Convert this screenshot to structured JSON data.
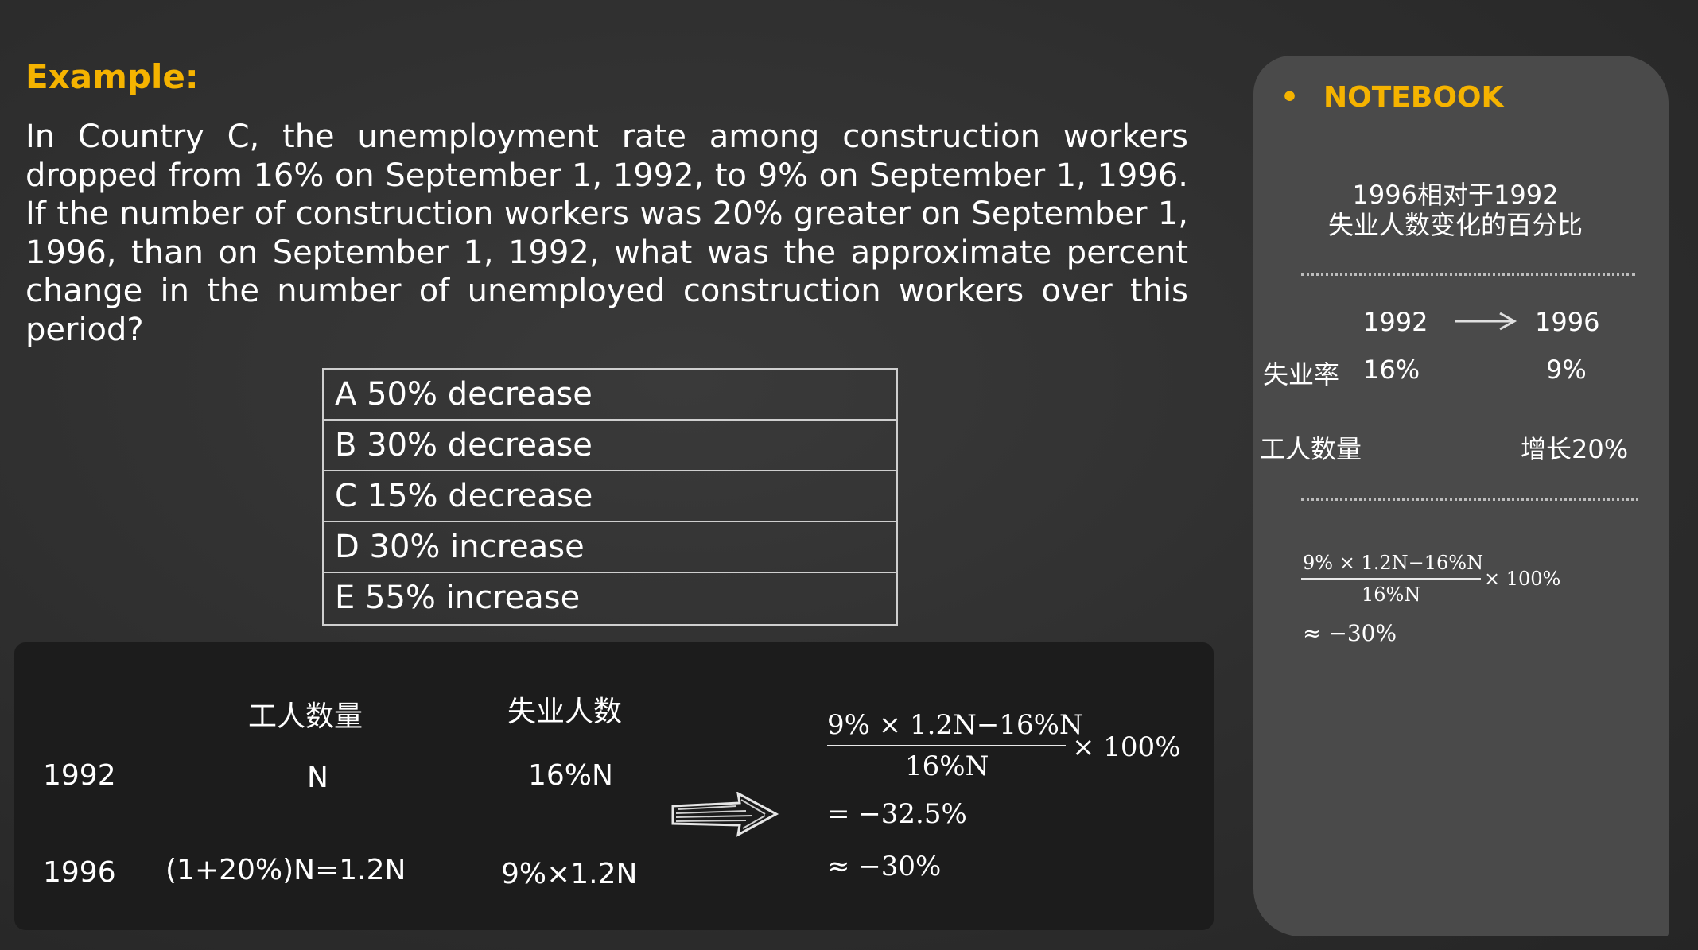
{
  "example": {
    "label": "Example:",
    "question": "In Country C, the unemployment rate among construction workers dropped from 16% on September 1, 1992, to 9% on September 1, 1996. If the number of construction workers was 20% greater on September 1, 1996, than on September 1, 1992, what was the approximate percent change in the number of unemployed construction workers over this period?"
  },
  "choices": [
    "A 50% decrease",
    "B 30% decrease",
    "C 15% decrease",
    "D 30% increase",
    "E 55% increase"
  ],
  "table": {
    "col_workers": "工人数量",
    "col_unemployed": "失业人数",
    "rows": [
      {
        "year": "1992",
        "workers": "N",
        "unemployed": "16%N"
      },
      {
        "year": "1996",
        "workers": "(1+20%)N=1.2N",
        "unemployed": "9%×1.2N"
      }
    ]
  },
  "calc": {
    "numerator": "9% × 1.2N−16%N",
    "denominator": "16%N",
    "multiplier": "× 100%",
    "result": "= −32.5%",
    "approx": "≈ −30%"
  },
  "notebook": {
    "bullet": "•",
    "title": "NOTEBOOK",
    "subtitle_line1": "1996相对于1992",
    "subtitle_line2": "失业人数变化的百分比",
    "year_from": "1992",
    "year_to": "1996",
    "rate_label": "失业率",
    "rate_from": "16%",
    "rate_to": "9%",
    "workers_label": "工人数量",
    "workers_change": "增长20%",
    "numerator": "9% × 1.2N−16%N",
    "denominator": "16%N",
    "multiplier": "× 100%",
    "approx": "≈ −30%"
  },
  "colors": {
    "accent": "#f5b300",
    "background": "#2e2e2e",
    "notebook_bg": "#4a4a4a",
    "panel_bg": "#1c1c1c"
  }
}
